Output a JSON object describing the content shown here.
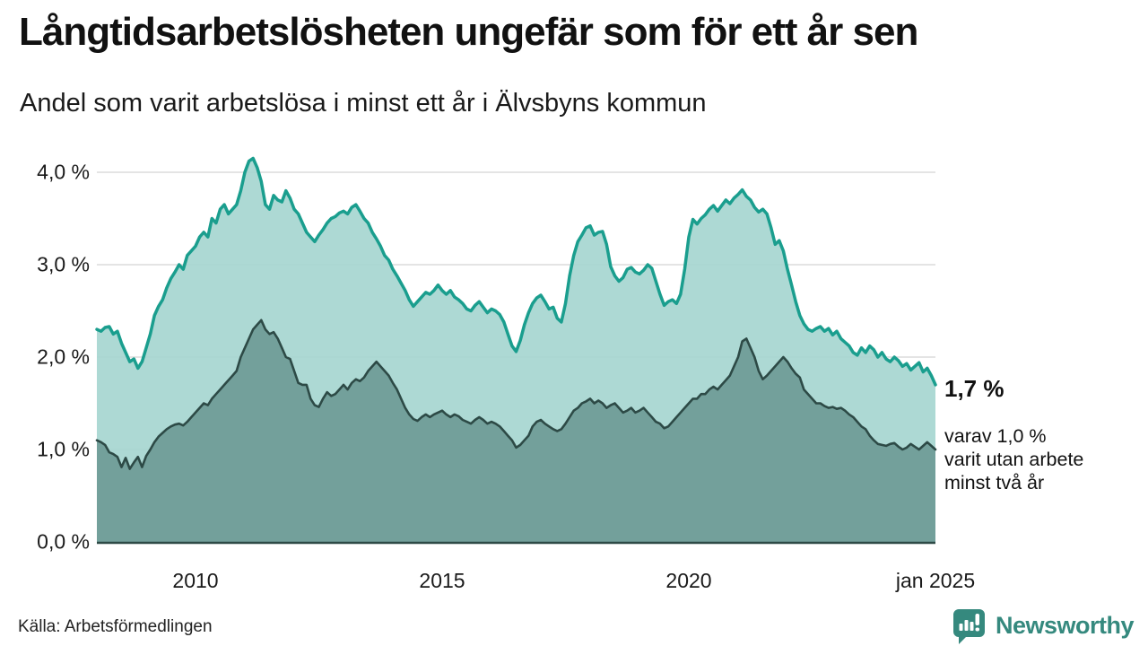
{
  "header": {
    "title": "Långtidsarbetslösheten ungefär som för ett år sen",
    "subtitle": "Andel som varit arbetslösa i minst ett år i Älvsbyns kommun"
  },
  "annotation": {
    "value_label": "1,7 %",
    "detail_lines": [
      "varav 1,0 %",
      "varit utan arbete",
      "minst två år"
    ]
  },
  "footer": {
    "source": "Källa: Arbetsförmedlingen",
    "brand": "Newsworthy"
  },
  "colors": {
    "line_1yr": "#1a9e8e",
    "fill_1yr": "#a4d5cf",
    "line_2yr": "#2d4a46",
    "fill_2yr": "#709d98",
    "grid": "#dcdcdc",
    "axis": "#2d4a46",
    "brand_teal": "#35897e",
    "text": "#111111"
  },
  "chart_data": {
    "type": "area",
    "title": "Långtidsarbetslösheten ungefär som för ett år sen",
    "subtitle": "Andel som varit arbetslösa i minst ett år i Älvsbyns kommun",
    "unit": "%",
    "x_description": "månadsvis, jan 2008 – jan 2025",
    "x_ticks": [
      {
        "label": "2010",
        "month_index": 24
      },
      {
        "label": "2015",
        "month_index": 84
      },
      {
        "label": "2020",
        "month_index": 144
      },
      {
        "label": "jan 2025",
        "month_index": 204
      }
    ],
    "y_ticks": [
      {
        "label": "0,0 %",
        "value": 0
      },
      {
        "label": "1,0 %",
        "value": 1
      },
      {
        "label": "2,0 %",
        "value": 2
      },
      {
        "label": "3,0 %",
        "value": 3
      },
      {
        "label": "4,0 %",
        "value": 4
      }
    ],
    "ylim": [
      0,
      4.2
    ],
    "grid": "horizontal",
    "legend_position": "none",
    "series": [
      {
        "name": "Arbetslösa minst ett år",
        "end_value_label": "1,7 %",
        "line_color": "#1a9e8e",
        "fill_color": "#a4d5cf",
        "line_width": 3.5,
        "values": [
          2.3,
          2.28,
          2.32,
          2.33,
          2.25,
          2.28,
          2.15,
          2.05,
          1.95,
          1.98,
          1.88,
          1.95,
          2.1,
          2.25,
          2.45,
          2.55,
          2.62,
          2.75,
          2.85,
          2.92,
          3.0,
          2.95,
          3.1,
          3.15,
          3.2,
          3.3,
          3.35,
          3.3,
          3.5,
          3.45,
          3.6,
          3.65,
          3.55,
          3.6,
          3.65,
          3.8,
          4.0,
          4.12,
          4.15,
          4.05,
          3.9,
          3.65,
          3.6,
          3.75,
          3.7,
          3.68,
          3.8,
          3.72,
          3.6,
          3.55,
          3.45,
          3.35,
          3.3,
          3.25,
          3.32,
          3.38,
          3.45,
          3.5,
          3.52,
          3.56,
          3.58,
          3.55,
          3.62,
          3.65,
          3.58,
          3.5,
          3.45,
          3.35,
          3.28,
          3.2,
          3.1,
          3.05,
          2.95,
          2.88,
          2.8,
          2.72,
          2.62,
          2.55,
          2.6,
          2.65,
          2.7,
          2.68,
          2.72,
          2.78,
          2.72,
          2.68,
          2.72,
          2.65,
          2.62,
          2.58,
          2.52,
          2.5,
          2.56,
          2.6,
          2.54,
          2.48,
          2.52,
          2.5,
          2.46,
          2.38,
          2.25,
          2.12,
          2.06,
          2.18,
          2.35,
          2.48,
          2.58,
          2.64,
          2.67,
          2.6,
          2.52,
          2.54,
          2.42,
          2.38,
          2.58,
          2.88,
          3.1,
          3.25,
          3.32,
          3.4,
          3.42,
          3.32,
          3.35,
          3.36,
          3.22,
          2.98,
          2.88,
          2.82,
          2.86,
          2.95,
          2.97,
          2.92,
          2.9,
          2.94,
          3.0,
          2.96,
          2.82,
          2.68,
          2.56,
          2.6,
          2.62,
          2.58,
          2.68,
          2.95,
          3.3,
          3.49,
          3.44,
          3.5,
          3.54,
          3.6,
          3.64,
          3.58,
          3.64,
          3.7,
          3.66,
          3.72,
          3.76,
          3.81,
          3.74,
          3.7,
          3.62,
          3.57,
          3.6,
          3.55,
          3.4,
          3.22,
          3.26,
          3.15,
          2.95,
          2.78,
          2.6,
          2.45,
          2.36,
          2.3,
          2.28,
          2.31,
          2.33,
          2.28,
          2.31,
          2.24,
          2.28,
          2.2,
          2.16,
          2.12,
          2.05,
          2.02,
          2.1,
          2.05,
          2.12,
          2.08,
          2.0,
          2.05,
          1.98,
          1.95,
          2.0,
          1.96,
          1.9,
          1.93,
          1.86,
          1.9,
          1.94,
          1.84,
          1.88,
          1.8,
          1.7
        ]
      },
      {
        "name": "Varit utan arbete minst två år",
        "end_value_label": "1,0 %",
        "line_color": "#2d4a46",
        "fill_color": "#709d98",
        "line_width": 2.6,
        "values": [
          1.1,
          1.08,
          1.05,
          0.97,
          0.95,
          0.92,
          0.81,
          0.91,
          0.79,
          0.86,
          0.92,
          0.81,
          0.93,
          1.0,
          1.08,
          1.14,
          1.18,
          1.22,
          1.25,
          1.27,
          1.28,
          1.26,
          1.3,
          1.35,
          1.4,
          1.45,
          1.5,
          1.48,
          1.55,
          1.6,
          1.65,
          1.7,
          1.75,
          1.8,
          1.85,
          2.0,
          2.1,
          2.2,
          2.3,
          2.35,
          2.4,
          2.3,
          2.25,
          2.27,
          2.2,
          2.1,
          2.0,
          1.98,
          1.85,
          1.72,
          1.7,
          1.7,
          1.55,
          1.48,
          1.46,
          1.55,
          1.62,
          1.58,
          1.6,
          1.65,
          1.7,
          1.65,
          1.72,
          1.76,
          1.74,
          1.78,
          1.85,
          1.9,
          1.95,
          1.9,
          1.85,
          1.8,
          1.72,
          1.65,
          1.55,
          1.45,
          1.38,
          1.33,
          1.31,
          1.35,
          1.38,
          1.35,
          1.38,
          1.4,
          1.42,
          1.38,
          1.35,
          1.38,
          1.36,
          1.32,
          1.3,
          1.28,
          1.32,
          1.35,
          1.32,
          1.28,
          1.3,
          1.28,
          1.25,
          1.2,
          1.15,
          1.1,
          1.02,
          1.05,
          1.1,
          1.15,
          1.25,
          1.3,
          1.32,
          1.28,
          1.25,
          1.22,
          1.2,
          1.22,
          1.28,
          1.35,
          1.42,
          1.45,
          1.5,
          1.52,
          1.55,
          1.5,
          1.53,
          1.5,
          1.45,
          1.48,
          1.5,
          1.45,
          1.4,
          1.42,
          1.45,
          1.4,
          1.42,
          1.45,
          1.4,
          1.35,
          1.3,
          1.28,
          1.23,
          1.25,
          1.3,
          1.35,
          1.4,
          1.45,
          1.5,
          1.55,
          1.55,
          1.6,
          1.6,
          1.65,
          1.68,
          1.65,
          1.7,
          1.75,
          1.8,
          1.9,
          2.0,
          2.17,
          2.2,
          2.1,
          2.0,
          1.85,
          1.76,
          1.8,
          1.85,
          1.9,
          1.95,
          2.0,
          1.95,
          1.88,
          1.82,
          1.78,
          1.65,
          1.6,
          1.55,
          1.5,
          1.5,
          1.47,
          1.45,
          1.46,
          1.44,
          1.45,
          1.42,
          1.38,
          1.35,
          1.3,
          1.25,
          1.22,
          1.15,
          1.1,
          1.06,
          1.05,
          1.04,
          1.06,
          1.07,
          1.03,
          1.0,
          1.02,
          1.06,
          1.03,
          1.0,
          1.04,
          1.08,
          1.04,
          1.0
        ]
      }
    ]
  }
}
